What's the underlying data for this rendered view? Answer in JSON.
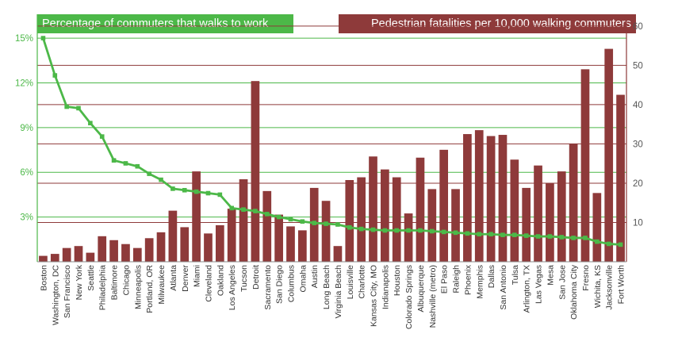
{
  "titles": {
    "left": "Percentage of commuters that walks to work",
    "right": "Pedestrian fatalities per 10,000 walking commuters"
  },
  "colors": {
    "line": "#4cb848",
    "bar": "#8e3a3a",
    "left_grid": "#4cb848",
    "right_grid": "#8e3a3a",
    "left_axis_text": "#4cb848",
    "right_axis_text": "#555555"
  },
  "chart_data": {
    "type": "bar",
    "categories": [
      "Boston",
      "Washington, DC",
      "San Francisco",
      "New York",
      "Seattle",
      "Philadelphia",
      "Baltimore",
      "Chicago",
      "Minneapolis",
      "Portland, OR",
      "Milwaukee",
      "Atlanta",
      "Denver",
      "Miami",
      "Cleveland",
      "Oakland",
      "Los Angeles",
      "Tucson",
      "Detroit",
      "Sacramento",
      "San Diego",
      "Columbus",
      "Omaha",
      "Austin",
      "Long Beach",
      "Virginia Beach",
      "Louisville",
      "Charlotte",
      "Kansas City, MO",
      "Indianapolis",
      "Houston",
      "Colorado Springs",
      "Albuquerque",
      "Nashville (metro)",
      "El Paso",
      "Raleigh",
      "Phoenix",
      "Memphis",
      "Dallas",
      "San Antonio",
      "Tulsa",
      "Arlington, TX",
      "Las Vegas",
      "Mesa",
      "San Jose",
      "Oklahoma City",
      "Fresno",
      "Wichita, KS",
      "Jacksonville",
      "Fort Worth"
    ],
    "series": [
      {
        "name": "Pedestrian fatalities per 10,000 walking commuters",
        "axis": "right",
        "kind": "bar",
        "values": [
          1.5,
          2,
          3.5,
          4,
          2.3,
          6.5,
          5.5,
          4.5,
          3.5,
          6,
          7.5,
          13,
          8.8,
          23,
          7.2,
          9.3,
          13.5,
          21,
          46,
          18,
          12,
          9,
          8,
          18.8,
          15.5,
          4,
          20.8,
          21.5,
          26.8,
          23.5,
          21.5,
          12.3,
          26.5,
          18.5,
          28.5,
          18.5,
          32.5,
          33.5,
          32,
          32.3,
          26,
          18.8,
          24.5,
          20,
          23,
          30,
          49,
          17.5,
          54.2,
          42.5
        ]
      },
      {
        "name": "Percentage of commuters that walks to work",
        "axis": "left",
        "kind": "line",
        "values": [
          15,
          12.5,
          10.4,
          10.3,
          9.3,
          8.4,
          6.8,
          6.6,
          6.4,
          5.9,
          5.5,
          4.9,
          4.8,
          4.7,
          4.6,
          4.5,
          3.6,
          3.5,
          3.4,
          3.2,
          3.0,
          2.85,
          2.7,
          2.6,
          2.55,
          2.5,
          2.3,
          2.2,
          2.15,
          2.1,
          2.1,
          2.1,
          2.1,
          2.05,
          2.0,
          1.95,
          1.9,
          1.85,
          1.85,
          1.8,
          1.8,
          1.75,
          1.7,
          1.7,
          1.65,
          1.6,
          1.6,
          1.35,
          1.2,
          1.15
        ]
      }
    ],
    "left_axis": {
      "ticks": [
        "3%",
        "6%",
        "9%",
        "12%",
        "15%"
      ],
      "tick_values": [
        3,
        6,
        9,
        12,
        15
      ],
      "ylim": [
        0,
        16.6
      ]
    },
    "right_axis": {
      "ticks": [
        "10",
        "20",
        "30",
        "40",
        "50",
        "60"
      ],
      "tick_values": [
        10,
        20,
        30,
        40,
        50,
        60
      ],
      "ylim": [
        0,
        63
      ]
    },
    "grid": true
  }
}
